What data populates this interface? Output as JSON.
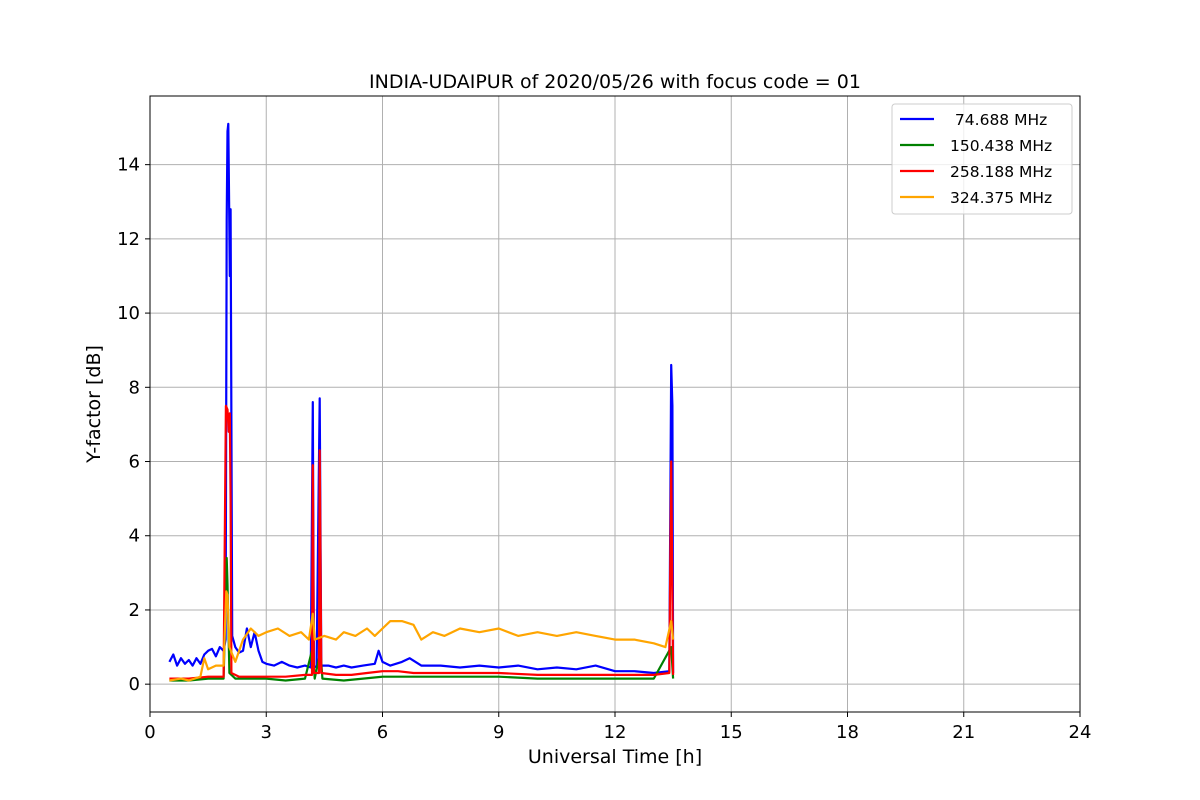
{
  "chart_data": {
    "type": "line",
    "title": "INDIA-UDAIPUR of 2020/05/26 with focus code = 01",
    "xlabel": "Universal Time [h]",
    "ylabel": "Y-factor [dB]",
    "xlim": [
      0,
      24
    ],
    "ylim": [
      -0.75,
      15.85
    ],
    "xticks": [
      0,
      3,
      6,
      9,
      12,
      15,
      18,
      21,
      24
    ],
    "yticks": [
      0,
      2,
      4,
      6,
      8,
      10,
      12,
      14
    ],
    "grid": true,
    "legend_position": "top-right",
    "series": [
      {
        "name": " 74.688 MHz",
        "color": "#0000ff",
        "points": [
          [
            0.5,
            0.6
          ],
          [
            0.6,
            0.8
          ],
          [
            0.7,
            0.5
          ],
          [
            0.8,
            0.7
          ],
          [
            0.9,
            0.55
          ],
          [
            1.0,
            0.65
          ],
          [
            1.1,
            0.5
          ],
          [
            1.2,
            0.7
          ],
          [
            1.3,
            0.55
          ],
          [
            1.4,
            0.8
          ],
          [
            1.5,
            0.9
          ],
          [
            1.6,
            0.95
          ],
          [
            1.7,
            0.75
          ],
          [
            1.8,
            1.0
          ],
          [
            1.9,
            0.9
          ],
          [
            1.95,
            1.2
          ],
          [
            1.98,
            12.5
          ],
          [
            2.0,
            14.9
          ],
          [
            2.02,
            15.1
          ],
          [
            2.04,
            13.0
          ],
          [
            2.06,
            11.0
          ],
          [
            2.08,
            12.8
          ],
          [
            2.1,
            7.0
          ],
          [
            2.12,
            1.3
          ],
          [
            2.2,
            1.0
          ],
          [
            2.3,
            0.85
          ],
          [
            2.4,
            0.9
          ],
          [
            2.5,
            1.5
          ],
          [
            2.6,
            1.0
          ],
          [
            2.7,
            1.4
          ],
          [
            2.8,
            0.9
          ],
          [
            2.9,
            0.6
          ],
          [
            3.0,
            0.55
          ],
          [
            3.2,
            0.5
          ],
          [
            3.4,
            0.6
          ],
          [
            3.6,
            0.5
          ],
          [
            3.8,
            0.45
          ],
          [
            4.0,
            0.5
          ],
          [
            4.15,
            0.45
          ],
          [
            4.2,
            7.6
          ],
          [
            4.23,
            0.5
          ],
          [
            4.3,
            0.45
          ],
          [
            4.38,
            7.7
          ],
          [
            4.42,
            0.5
          ],
          [
            4.6,
            0.5
          ],
          [
            4.8,
            0.45
          ],
          [
            5.0,
            0.5
          ],
          [
            5.2,
            0.45
          ],
          [
            5.5,
            0.5
          ],
          [
            5.8,
            0.55
          ],
          [
            5.9,
            0.9
          ],
          [
            6.0,
            0.6
          ],
          [
            6.2,
            0.5
          ],
          [
            6.5,
            0.6
          ],
          [
            6.7,
            0.7
          ],
          [
            7.0,
            0.5
          ],
          [
            7.5,
            0.5
          ],
          [
            8.0,
            0.45
          ],
          [
            8.5,
            0.5
          ],
          [
            9.0,
            0.45
          ],
          [
            9.5,
            0.5
          ],
          [
            10.0,
            0.4
          ],
          [
            10.5,
            0.45
          ],
          [
            11.0,
            0.4
          ],
          [
            11.5,
            0.5
          ],
          [
            12.0,
            0.35
          ],
          [
            12.5,
            0.35
          ],
          [
            13.0,
            0.3
          ],
          [
            13.4,
            0.35
          ],
          [
            13.45,
            8.6
          ],
          [
            13.48,
            7.5
          ],
          [
            13.5,
            0.3
          ]
        ]
      },
      {
        "name": "150.438 MHz",
        "color": "#008000",
        "points": [
          [
            0.5,
            0.1
          ],
          [
            1.0,
            0.1
          ],
          [
            1.5,
            0.15
          ],
          [
            1.9,
            0.15
          ],
          [
            1.98,
            3.4
          ],
          [
            2.0,
            2.7
          ],
          [
            2.05,
            0.3
          ],
          [
            2.2,
            0.15
          ],
          [
            2.5,
            0.15
          ],
          [
            3.0,
            0.15
          ],
          [
            3.5,
            0.1
          ],
          [
            4.0,
            0.15
          ],
          [
            4.2,
            1.0
          ],
          [
            4.25,
            0.15
          ],
          [
            4.4,
            0.9
          ],
          [
            4.45,
            0.15
          ],
          [
            5.0,
            0.1
          ],
          [
            5.5,
            0.15
          ],
          [
            6.0,
            0.2
          ],
          [
            6.5,
            0.2
          ],
          [
            7.0,
            0.2
          ],
          [
            8.0,
            0.2
          ],
          [
            9.0,
            0.2
          ],
          [
            10.0,
            0.15
          ],
          [
            11.0,
            0.15
          ],
          [
            12.0,
            0.15
          ],
          [
            13.0,
            0.15
          ],
          [
            13.45,
            1.0
          ],
          [
            13.5,
            0.15
          ]
        ]
      },
      {
        "name": "258.188 MHz",
        "color": "#ff0000",
        "points": [
          [
            0.5,
            0.15
          ],
          [
            1.0,
            0.15
          ],
          [
            1.5,
            0.2
          ],
          [
            1.9,
            0.2
          ],
          [
            1.96,
            7.5
          ],
          [
            2.0,
            7.4
          ],
          [
            2.03,
            6.8
          ],
          [
            2.06,
            7.3
          ],
          [
            2.08,
            5.0
          ],
          [
            2.1,
            0.3
          ],
          [
            2.3,
            0.2
          ],
          [
            2.6,
            0.2
          ],
          [
            3.0,
            0.2
          ],
          [
            3.5,
            0.2
          ],
          [
            4.0,
            0.25
          ],
          [
            4.18,
            0.25
          ],
          [
            4.2,
            5.9
          ],
          [
            4.23,
            0.3
          ],
          [
            4.36,
            0.3
          ],
          [
            4.38,
            6.3
          ],
          [
            4.42,
            0.3
          ],
          [
            4.8,
            0.25
          ],
          [
            5.2,
            0.25
          ],
          [
            5.6,
            0.3
          ],
          [
            6.0,
            0.35
          ],
          [
            6.4,
            0.35
          ],
          [
            6.8,
            0.3
          ],
          [
            7.5,
            0.3
          ],
          [
            8.0,
            0.3
          ],
          [
            9.0,
            0.3
          ],
          [
            10.0,
            0.25
          ],
          [
            11.0,
            0.25
          ],
          [
            12.0,
            0.25
          ],
          [
            13.0,
            0.25
          ],
          [
            13.4,
            0.3
          ],
          [
            13.45,
            6.0
          ],
          [
            13.5,
            0.25
          ]
        ]
      },
      {
        "name": "324.375 MHz",
        "color": "#ffa500",
        "points": [
          [
            0.5,
            0.1
          ],
          [
            0.8,
            0.15
          ],
          [
            1.0,
            0.1
          ],
          [
            1.3,
            0.2
          ],
          [
            1.4,
            0.7
          ],
          [
            1.5,
            0.4
          ],
          [
            1.7,
            0.5
          ],
          [
            1.9,
            0.5
          ],
          [
            1.97,
            2.5
          ],
          [
            2.0,
            2.4
          ],
          [
            2.05,
            1.0
          ],
          [
            2.2,
            0.6
          ],
          [
            2.4,
            1.2
          ],
          [
            2.6,
            1.5
          ],
          [
            2.8,
            1.3
          ],
          [
            3.0,
            1.4
          ],
          [
            3.3,
            1.5
          ],
          [
            3.6,
            1.3
          ],
          [
            3.9,
            1.4
          ],
          [
            4.1,
            1.2
          ],
          [
            4.2,
            1.9
          ],
          [
            4.25,
            1.2
          ],
          [
            4.5,
            1.3
          ],
          [
            4.8,
            1.2
          ],
          [
            5.0,
            1.4
          ],
          [
            5.3,
            1.3
          ],
          [
            5.6,
            1.5
          ],
          [
            5.8,
            1.3
          ],
          [
            6.0,
            1.5
          ],
          [
            6.2,
            1.7
          ],
          [
            6.5,
            1.7
          ],
          [
            6.8,
            1.6
          ],
          [
            7.0,
            1.2
          ],
          [
            7.3,
            1.4
          ],
          [
            7.6,
            1.3
          ],
          [
            8.0,
            1.5
          ],
          [
            8.5,
            1.4
          ],
          [
            9.0,
            1.5
          ],
          [
            9.5,
            1.3
          ],
          [
            10.0,
            1.4
          ],
          [
            10.5,
            1.3
          ],
          [
            11.0,
            1.4
          ],
          [
            11.5,
            1.3
          ],
          [
            12.0,
            1.2
          ],
          [
            12.5,
            1.2
          ],
          [
            13.0,
            1.1
          ],
          [
            13.3,
            1.0
          ],
          [
            13.45,
            1.7
          ],
          [
            13.5,
            1.2
          ]
        ]
      }
    ]
  }
}
